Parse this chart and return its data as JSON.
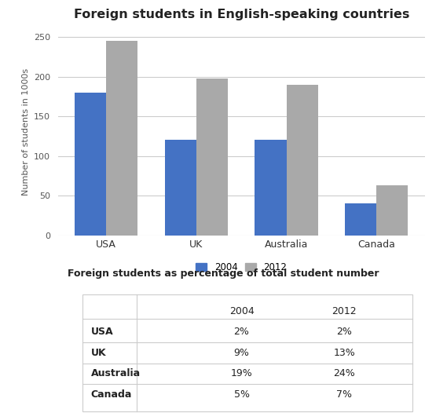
{
  "title": "Foreign students in English-speaking countries",
  "categories": [
    "USA",
    "UK",
    "Australia",
    "Canada"
  ],
  "values_2004": [
    180,
    120,
    120,
    40
  ],
  "values_2012": [
    245,
    198,
    190,
    63
  ],
  "color_2004": "#4472C4",
  "color_2012": "#A9A9A9",
  "ylabel": "Number of students in 1000s",
  "ylim": [
    0,
    260
  ],
  "yticks": [
    0,
    50,
    100,
    150,
    200,
    250
  ],
  "legend_labels": [
    "2004",
    "2012"
  ],
  "table_title": "Foreign students as percentage of total student number",
  "table_col_headers": [
    "",
    "2004",
    "2012"
  ],
  "table_rows": [
    [
      "USA",
      "2%",
      "2%"
    ],
    [
      "UK",
      "9%",
      "13%"
    ],
    [
      "Australia",
      "19%",
      "24%"
    ],
    [
      "Canada",
      "5%",
      "7%"
    ]
  ],
  "background_color": "#ffffff"
}
